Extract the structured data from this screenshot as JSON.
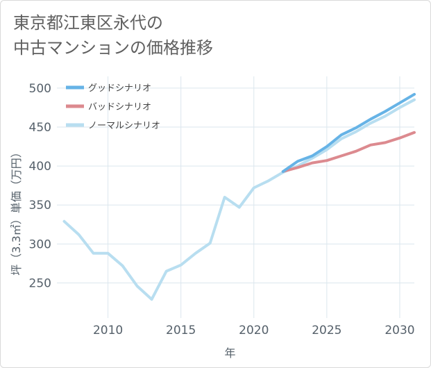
{
  "page": {
    "title_line1": "東京都江東区永代の",
    "title_line2": "中古マンションの価格推移"
  },
  "chart_data": {
    "type": "line",
    "title": "東京都江東区永代の中古マンションの価格推移",
    "xlabel": "年",
    "ylabel": "坪（3.3㎡）単価（万円）",
    "xlim": [
      2006.5,
      2031
    ],
    "ylim": [
      205,
      515
    ],
    "xticks": [
      2010,
      2015,
      2020,
      2025,
      2030
    ],
    "yticks": [
      250,
      300,
      350,
      400,
      450,
      500
    ],
    "xtick_labels": [
      "2010",
      "2015",
      "2020",
      "2025",
      "2030"
    ],
    "ytick_labels": [
      "250",
      "300",
      "350",
      "400",
      "450",
      "500"
    ],
    "grid": true,
    "legend_position": "top-left",
    "series": [
      {
        "name": "グッドシナリオ",
        "color": "#66b3e6",
        "x": [
          2022,
          2023,
          2024,
          2025,
          2026,
          2027,
          2028,
          2029,
          2030,
          2031
        ],
        "y": [
          393,
          406,
          413,
          425,
          440,
          449,
          460,
          470,
          481,
          492
        ]
      },
      {
        "name": "バッドシナリオ",
        "color": "#dc8a8f",
        "x": [
          2022,
          2023,
          2024,
          2025,
          2026,
          2027,
          2028,
          2029,
          2030,
          2031
        ],
        "y": [
          393,
          398,
          404,
          407,
          413,
          419,
          427,
          430,
          436,
          443
        ]
      },
      {
        "name": "ノーマルシナリオ",
        "color": "#b8def0",
        "x": [
          2007,
          2008,
          2009,
          2010,
          2011,
          2012,
          2013,
          2014,
          2015,
          2016,
          2017,
          2018,
          2019,
          2020,
          2021,
          2022,
          2023,
          2024,
          2025,
          2026,
          2027,
          2028,
          2029,
          2030,
          2031
        ],
        "y": [
          329,
          312,
          288,
          288,
          272,
          246,
          229,
          265,
          273,
          288,
          301,
          360,
          347,
          372,
          381,
          392,
          400,
          410,
          421,
          435,
          444,
          455,
          464,
          475,
          485
        ]
      }
    ]
  }
}
